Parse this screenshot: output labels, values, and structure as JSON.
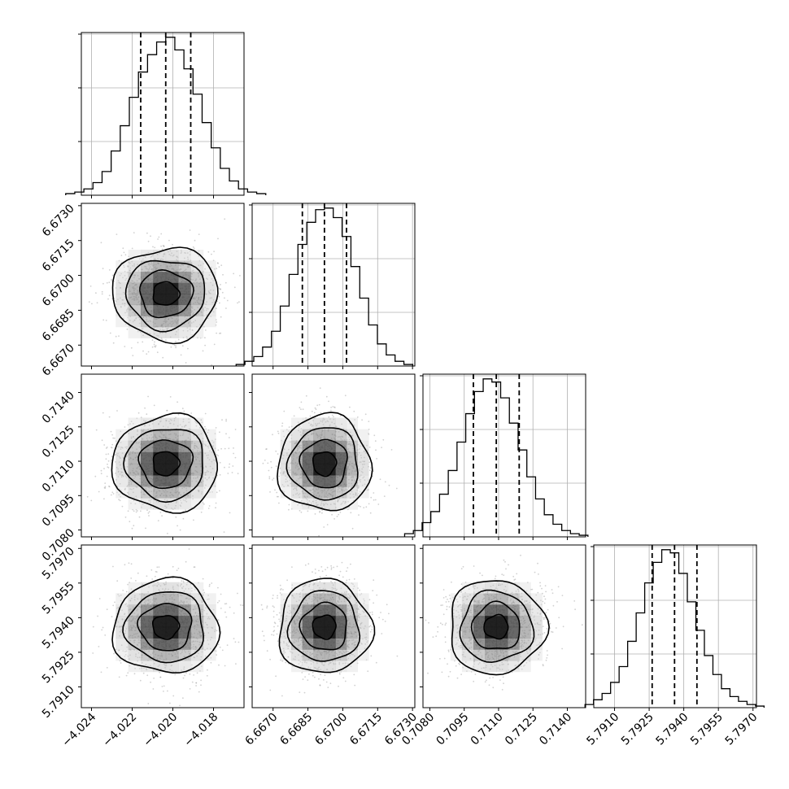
{
  "chart_data": {
    "type": "corner",
    "title": "",
    "parameters": [
      {
        "name": "",
        "range": [
          -4.0245,
          -4.0165
        ],
        "ticks": [
          -4.024,
          -4.022,
          -4.02,
          -4.018
        ],
        "tick_labels": [
          "−4.024",
          "−4.022",
          "−4.020",
          "−4.018"
        ],
        "median": -4.02035,
        "sigma": 0.00123,
        "quantiles": [
          -4.02158,
          -4.02035,
          -4.01912
        ],
        "histogram": [
          1,
          2,
          4,
          8,
          15,
          28,
          44,
          62,
          78,
          89,
          97,
          100,
          92,
          80,
          64,
          46,
          30,
          17,
          9,
          4,
          2,
          1
        ]
      },
      {
        "name": "",
        "range": [
          6.6661,
          6.6731
        ],
        "ticks": [
          6.667,
          6.6685,
          6.67,
          6.6715,
          6.673
        ],
        "tick_labels": [
          "6.6670",
          "6.6685",
          "6.6700",
          "6.6715",
          "6.6730"
        ],
        "median": 6.66921,
        "sigma": 0.00095,
        "quantiles": [
          6.66826,
          6.66921,
          6.67016
        ],
        "histogram": [
          1,
          3,
          6,
          12,
          22,
          38,
          58,
          77,
          91,
          99,
          100,
          94,
          82,
          63,
          43,
          26,
          14,
          7,
          3,
          1
        ]
      },
      {
        "name": "",
        "range": [
          0.7077,
          0.7148
        ],
        "ticks": [
          0.708,
          0.7095,
          0.711,
          0.7125,
          0.714
        ],
        "tick_labels": [
          "0.7080",
          "0.7095",
          "0.7110",
          "0.7125",
          "0.7140"
        ],
        "median": 0.7109,
        "sigma": 0.001,
        "quantiles": [
          0.7099,
          0.7109,
          0.7119
        ],
        "histogram": [
          2,
          4,
          9,
          16,
          27,
          42,
          60,
          78,
          92,
          100,
          98,
          88,
          72,
          55,
          38,
          24,
          14,
          8,
          4,
          2,
          1
        ]
      },
      {
        "name": "",
        "range": [
          5.7901,
          5.79715
        ],
        "ticks": [
          5.791,
          5.7925,
          5.794,
          5.7955,
          5.797
        ],
        "tick_labels": [
          "5.7910",
          "5.7925",
          "5.7940",
          "5.7955",
          "5.7970"
        ],
        "median": 5.7936,
        "sigma": 0.00097,
        "quantiles": [
          5.79263,
          5.7936,
          5.79457
        ],
        "histogram": [
          2,
          5,
          9,
          16,
          26,
          42,
          60,
          79,
          92,
          100,
          98,
          85,
          67,
          49,
          33,
          21,
          12,
          7,
          4,
          2,
          1
        ]
      }
    ],
    "contour_levels_sigma": [
      0.5,
      1.0,
      1.5,
      2.0
    ],
    "grid": true,
    "legend": "none"
  }
}
